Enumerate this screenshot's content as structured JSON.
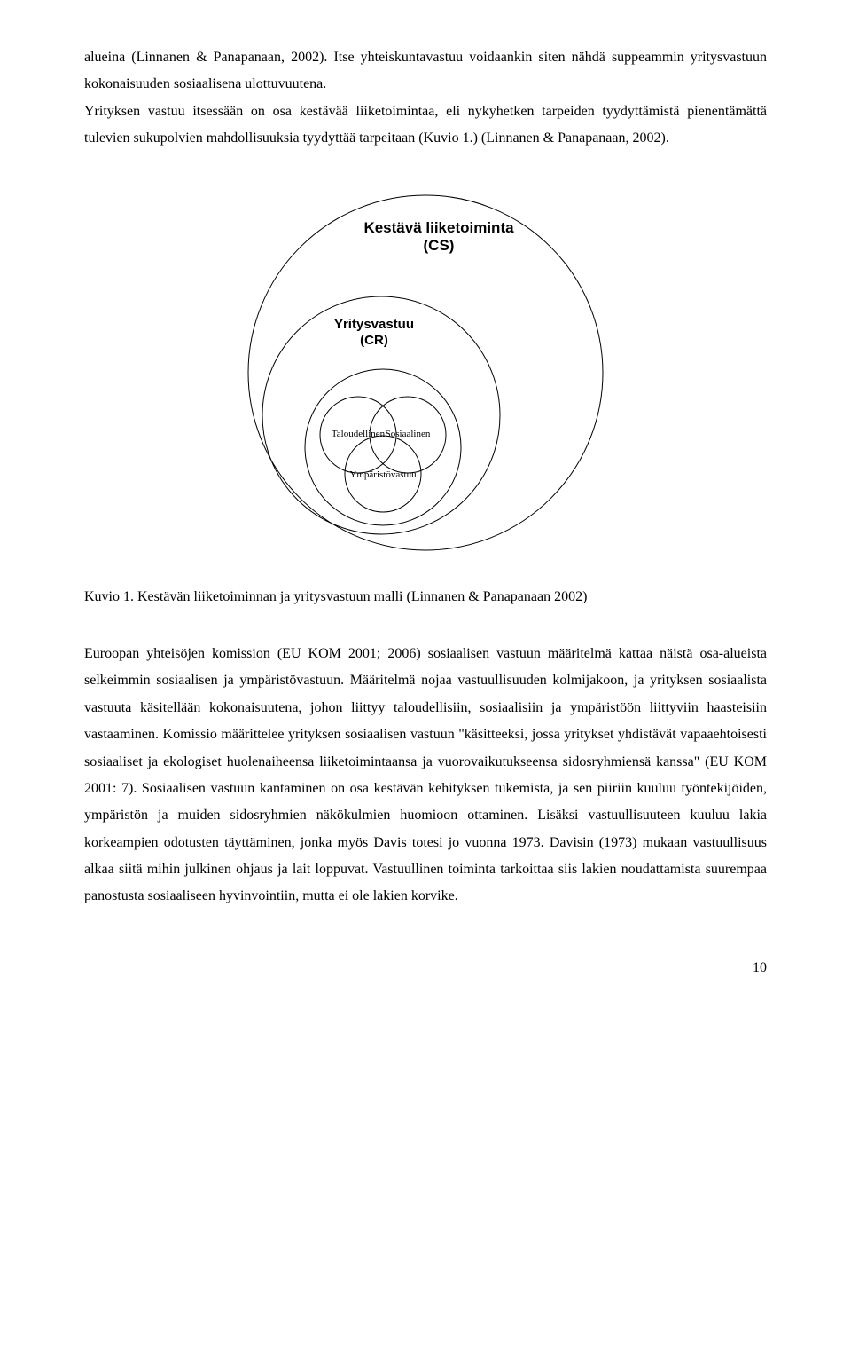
{
  "para1": "alueina (Linnanen & Panapanaan, 2002). Itse yhteiskuntavastuu voidaankin siten nähdä suppeammin yritysvastuun kokonaisuuden sosiaalisena ulottuvuutena.",
  "para2": "Yrityksen vastuu itsessään on osa kestävää liiketoimintaa, eli nykyhetken tarpeiden tyydyttämistä pienentämättä tulevien sukupolvien mahdollisuuksia tyydyttää tarpeitaan (Kuvio 1.) (Linnanen & Panapanaan, 2002).",
  "diagram": {
    "outer_r": 200,
    "mid_r": 134,
    "inner_r": 88,
    "small_r": 43,
    "labels": {
      "outer_line1": "Kestävä liiketoiminta",
      "outer_line2": "(CS)",
      "outer_fontsize": 17,
      "mid_line1": "Yritysvastuu",
      "mid_line2": "(CR)",
      "mid_fontsize": 15,
      "left": "Taloudellinen",
      "right": "Sosiaalinen",
      "bottom": "Ympäristövastuu"
    },
    "stroke": "#000000",
    "stroke_width": 1,
    "background": "#ffffff"
  },
  "caption": "Kuvio 1. Kestävän liiketoiminnan ja yritysvastuun malli (Linnanen & Panapanaan 2002)",
  "para3": "Euroopan yhteisöjen komission (EU KOM 2001; 2006) sosiaalisen vastuun määritelmä kattaa näistä osa-alueista selkeimmin sosiaalisen ja ympäristövastuun. Määritelmä nojaa vastuullisuuden kolmijakoon, ja yrityksen sosiaalista vastuuta käsitellään kokonaisuutena, johon liittyy taloudellisiin, sosiaalisiin ja ympäristöön liittyviin haasteisiin vastaaminen. Komissio määrittelee yrityksen sosiaalisen vastuun \"käsitteeksi, jossa yritykset yhdistävät vapaaehtoisesti sosiaaliset ja ekologiset huolenaiheensa liiketoimintaansa ja vuorovaikutukseensa sidosryhmiensä kanssa\" (EU KOM 2001: 7). Sosiaalisen vastuun kantaminen on osa kestävän kehityksen tukemista, ja sen piiriin kuuluu työntekijöiden, ympäristön ja muiden sidosryhmien näkökulmien huomioon ottaminen. Lisäksi vastuullisuuteen kuuluu lakia korkeampien odotusten täyttäminen, jonka myös Davis totesi jo vuonna 1973. Davisin (1973) mukaan vastuullisuus alkaa siitä mihin julkinen ohjaus ja lait loppuvat. Vastuullinen toiminta tarkoittaa siis lakien noudattamista suurempaa panostusta sosiaaliseen hyvinvointiin, mutta ei ole lakien korvike.",
  "page_number": "10"
}
